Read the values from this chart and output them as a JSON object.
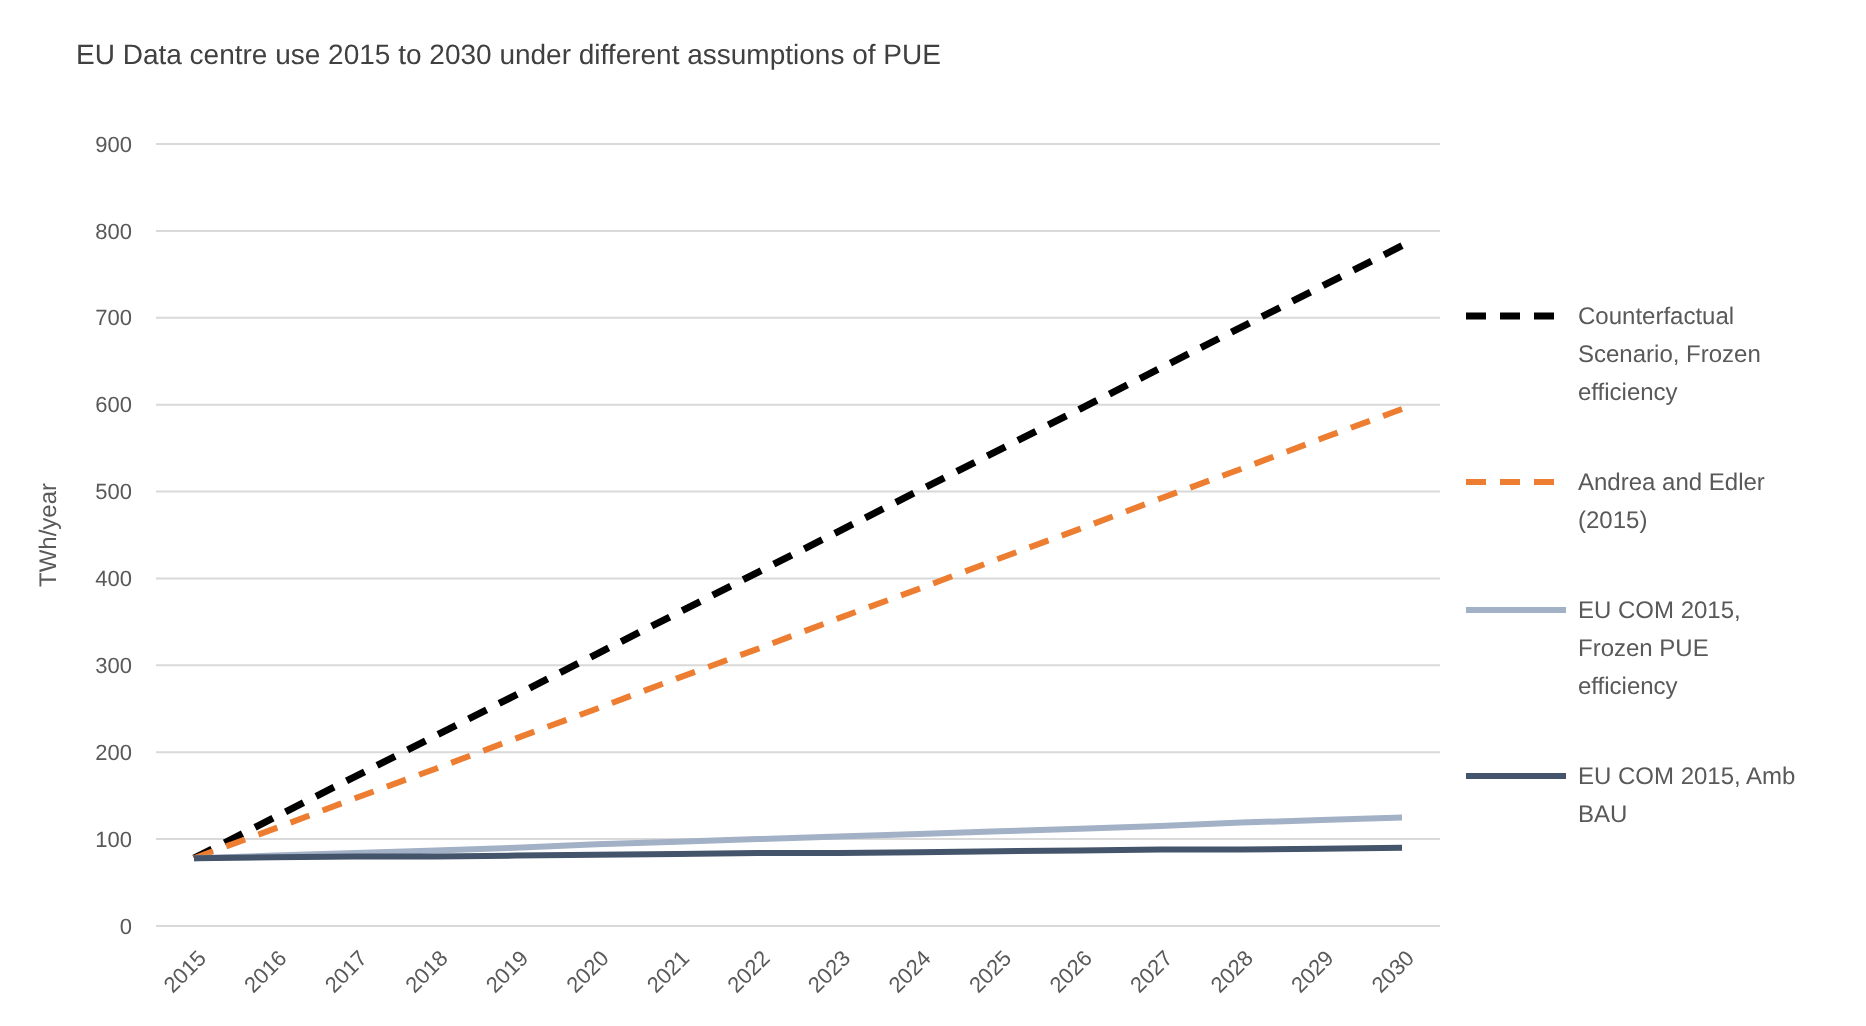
{
  "chart_data": {
    "type": "line",
    "title": "EU Data centre use 2015 to 2030 under different assumptions of PUE",
    "ylabel": "TWh/year",
    "categories": [
      "2015",
      "2016",
      "2017",
      "2018",
      "2019",
      "2020",
      "2021",
      "2022",
      "2023",
      "2024",
      "2025",
      "2026",
      "2027",
      "2028",
      "2029",
      "2030"
    ],
    "ylim": [
      0,
      900
    ],
    "yticks": [
      0,
      100,
      200,
      300,
      400,
      500,
      600,
      700,
      800,
      900
    ],
    "grid": "y",
    "legend": "right",
    "marker": "none",
    "series": [
      {
        "name": "Counterfactual Scenario, Frozen efficiency",
        "color": "#000000",
        "line_style": "dashed",
        "values": [
          78,
          125,
          172,
          219,
          266,
          313,
          360,
          407,
          454,
          501,
          548,
          595,
          642,
          689,
          736,
          783
        ]
      },
      {
        "name": "Andrea and Edler (2015)",
        "color": "#ed7d31",
        "line_style": "dashed",
        "values": [
          78,
          112,
          147,
          181,
          216,
          250,
          285,
          319,
          354,
          388,
          423,
          457,
          492,
          526,
          561,
          595
        ]
      },
      {
        "name": "EU COM 2015, Frozen PUE efficiency",
        "color": "#a3b1c6",
        "line_style": "solid",
        "values": [
          78,
          81,
          84,
          87,
          90,
          94,
          97,
          100,
          103,
          106,
          109,
          112,
          115,
          119,
          122,
          125
        ]
      },
      {
        "name": "EU COM 2015, Amb BAU",
        "color": "#44546a",
        "line_style": "solid",
        "values": [
          78,
          79,
          80,
          80,
          81,
          82,
          83,
          84,
          84,
          85,
          86,
          87,
          88,
          88,
          89,
          90
        ]
      }
    ]
  }
}
